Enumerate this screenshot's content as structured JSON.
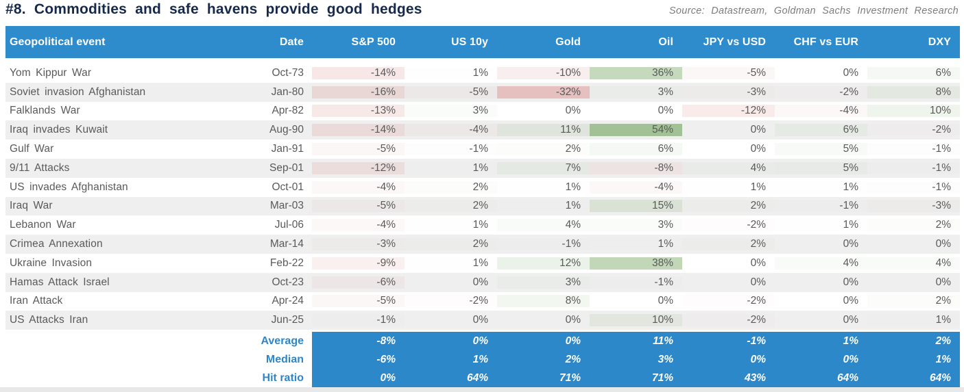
{
  "title": "#8. Commodities and safe havens provide good hedges",
  "source": "Source: Datastream, Goldman Sachs Investment Research",
  "colors": {
    "header_bg": "#2e8ccd",
    "summary_bg": "#2d88ca",
    "summary_label": "#2e86c8",
    "title_text": "#15294d",
    "source_text": "#7d7d7d",
    "row_stripe": "#efefef",
    "cell_text": "#595959",
    "bottom_strip": "#e8e8e8"
  },
  "heatmap": {
    "positive_base_rgb": "120,168,100",
    "negative_base_rgb": "217,138,136",
    "positive_max": 54,
    "negative_max": 32,
    "positive_alpha": 0.65,
    "negative_alpha": 0.46
  },
  "chart_data": {
    "type": "table",
    "title": "#8. Commodities and safe havens provide good hedges",
    "columns": [
      "Geopolitical event",
      "Date",
      "S&P 500",
      "US 10y",
      "Gold",
      "Oil",
      "JPY vs USD",
      "CHF vs EUR",
      "DXY"
    ],
    "rows": [
      {
        "event": "Yom Kippur War",
        "date": "Oct-73",
        "values": [
          "-14%",
          "1%",
          "-10%",
          "36%",
          "-5%",
          "0%",
          "6%"
        ]
      },
      {
        "event": "Soviet invasion Afghanistan",
        "date": "Jan-80",
        "values": [
          "-16%",
          "-5%",
          "-32%",
          "3%",
          "-3%",
          "-2%",
          "8%"
        ]
      },
      {
        "event": "Falklands War",
        "date": "Apr-82",
        "values": [
          "-13%",
          "3%",
          "0%",
          "0%",
          "-12%",
          "-4%",
          "10%"
        ]
      },
      {
        "event": "Iraq invades Kuwait",
        "date": "Aug-90",
        "values": [
          "-14%",
          "-4%",
          "11%",
          "54%",
          "0%",
          "6%",
          "-2%"
        ]
      },
      {
        "event": "Gulf War",
        "date": "Jan-91",
        "values": [
          "-5%",
          "-1%",
          "2%",
          "6%",
          "0%",
          "5%",
          "-1%"
        ]
      },
      {
        "event": "9/11 Attacks",
        "date": "Sep-01",
        "values": [
          "-12%",
          "1%",
          "7%",
          "-8%",
          "4%",
          "5%",
          "-1%"
        ]
      },
      {
        "event": "US invades Afghanistan",
        "date": "Oct-01",
        "values": [
          "-4%",
          "2%",
          "1%",
          "-4%",
          "1%",
          "1%",
          "-1%"
        ]
      },
      {
        "event": "Iraq War",
        "date": "Mar-03",
        "values": [
          "-5%",
          "2%",
          "1%",
          "15%",
          "2%",
          "-1%",
          "-3%"
        ]
      },
      {
        "event": "Lebanon War",
        "date": "Jul-06",
        "values": [
          "-4%",
          "1%",
          "4%",
          "3%",
          "-2%",
          "1%",
          "2%"
        ]
      },
      {
        "event": "Crimea Annexation",
        "date": "Mar-14",
        "values": [
          "-3%",
          "2%",
          "-1%",
          "1%",
          "2%",
          "0%",
          "0%"
        ]
      },
      {
        "event": "Ukraine Invasion",
        "date": "Feb-22",
        "values": [
          "-9%",
          "1%",
          "12%",
          "38%",
          "0%",
          "4%",
          "4%"
        ]
      },
      {
        "event": "Hamas Attack Israel",
        "date": "Oct-23",
        "values": [
          "-6%",
          "0%",
          "3%",
          "-1%",
          "0%",
          "0%",
          "0%"
        ]
      },
      {
        "event": "Iran Attack",
        "date": "Apr-24",
        "values": [
          "-5%",
          "-2%",
          "8%",
          "0%",
          "-2%",
          "0%",
          "2%"
        ]
      },
      {
        "event": "US Attacks Iran",
        "date": "Jun-25",
        "values": [
          "-1%",
          "0%",
          "0%",
          "10%",
          "-2%",
          "0%",
          "1%"
        ]
      }
    ],
    "summary": [
      {
        "label": "Average",
        "values": [
          "-8%",
          "0%",
          "0%",
          "11%",
          "-1%",
          "1%",
          "2%"
        ]
      },
      {
        "label": "Median",
        "values": [
          "-6%",
          "1%",
          "2%",
          "3%",
          "0%",
          "0%",
          "1%"
        ]
      },
      {
        "label": "Hit ratio",
        "values": [
          "0%",
          "64%",
          "71%",
          "71%",
          "43%",
          "64%",
          "64%"
        ]
      }
    ]
  }
}
